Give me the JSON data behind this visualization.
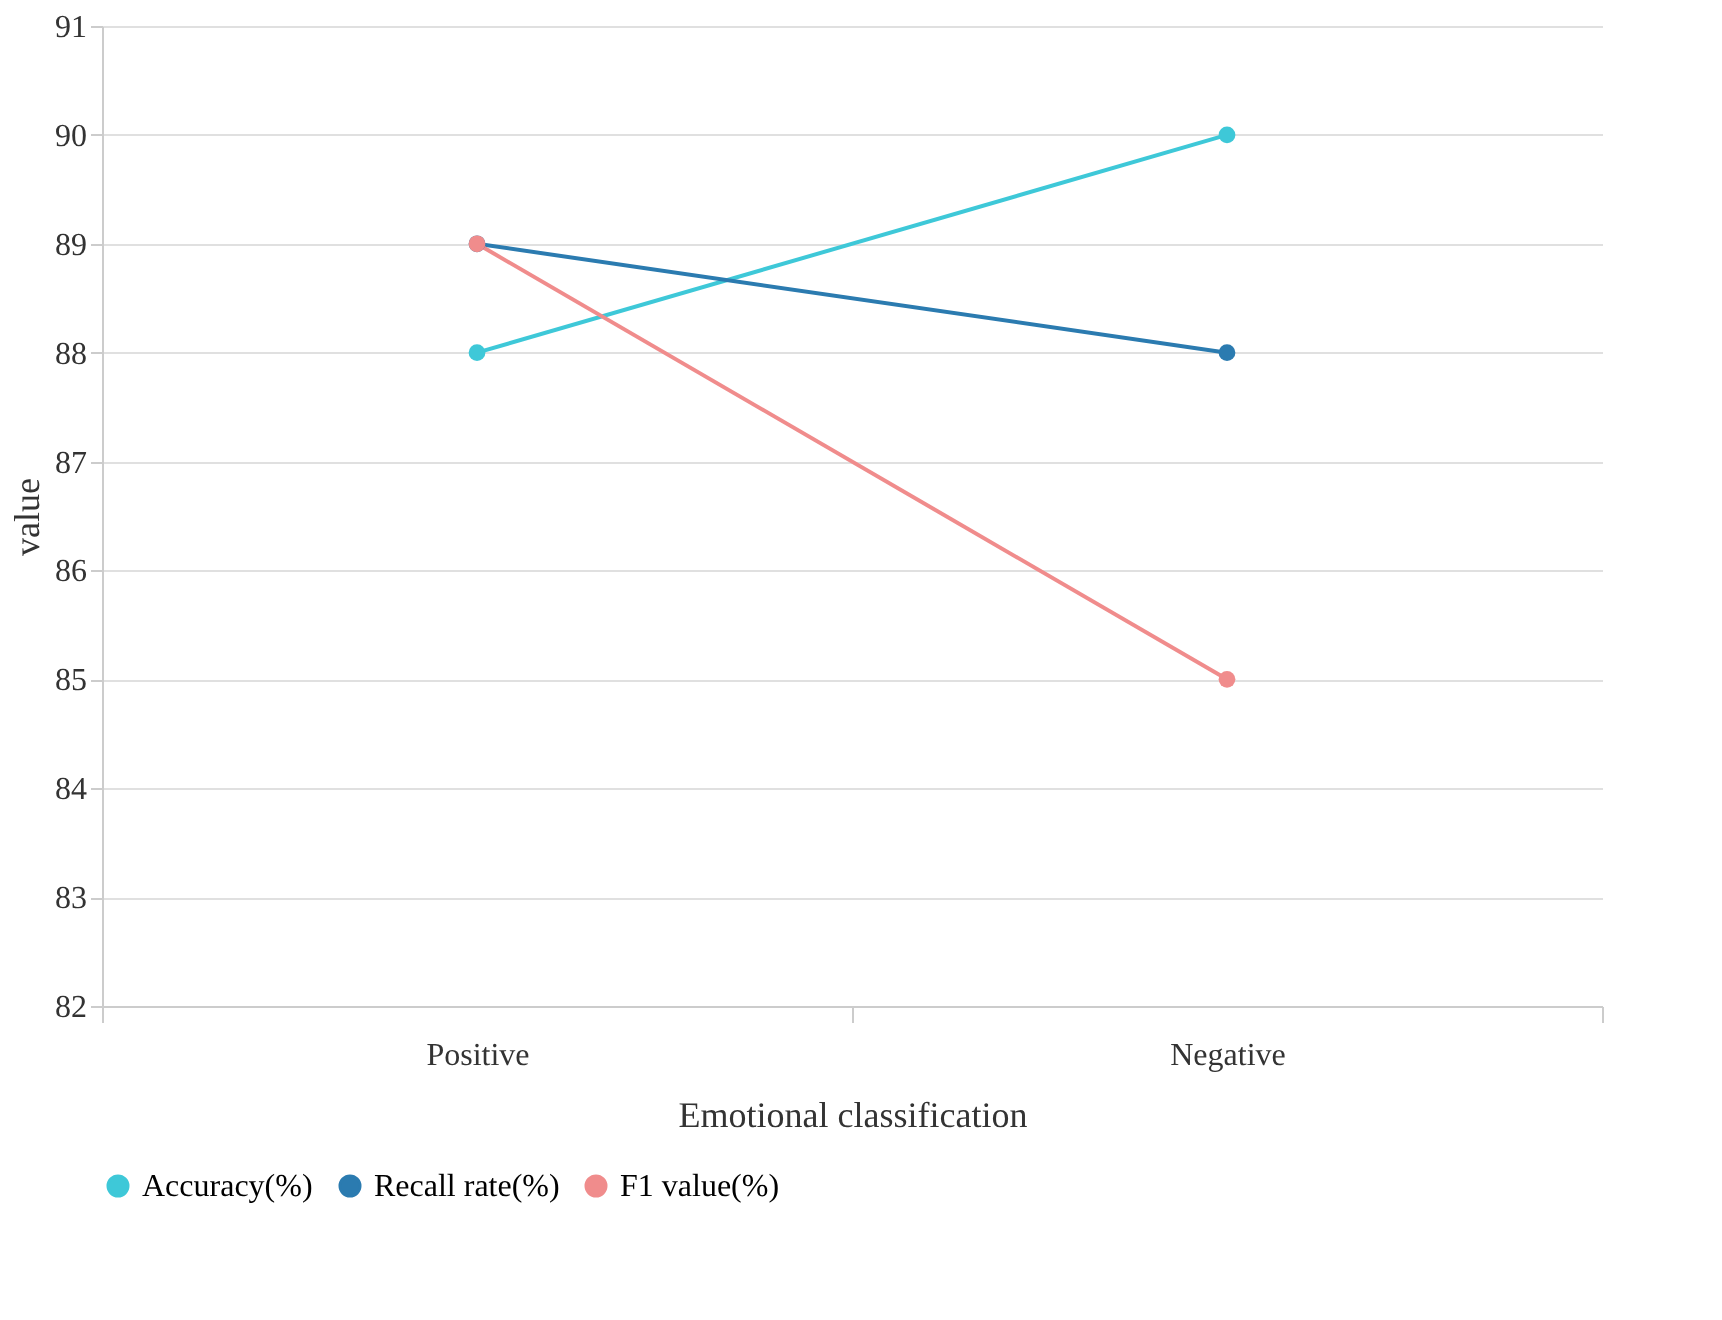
{
  "chart_data": {
    "type": "line",
    "xlabel": "Emotional classification",
    "ylabel": "value",
    "categories": [
      "Positive",
      "Negative"
    ],
    "series": [
      {
        "name": "Accuracy(%)",
        "color": "#3ec8d8",
        "values": [
          88,
          90
        ]
      },
      {
        "name": "Recall rate(%)",
        "color": "#2b7bb0",
        "values": [
          89,
          88
        ]
      },
      {
        "name": "F1 value(%)",
        "color": "#f08c8c",
        "values": [
          89,
          85
        ]
      }
    ],
    "ylim": [
      82,
      91
    ],
    "yticks": [
      82,
      83,
      84,
      85,
      86,
      87,
      88,
      89,
      90,
      91
    ],
    "grid": "y",
    "legend": "bottom",
    "marker": "circle",
    "line_style": "solid"
  }
}
